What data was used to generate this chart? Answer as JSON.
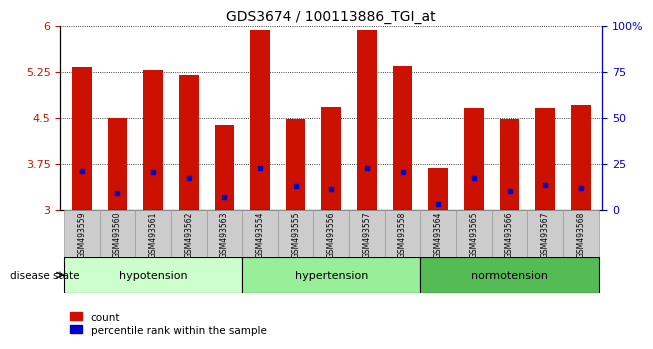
{
  "title": "GDS3674 / 100113886_TGI_at",
  "samples": [
    "GSM493559",
    "GSM493560",
    "GSM493561",
    "GSM493562",
    "GSM493563",
    "GSM493554",
    "GSM493555",
    "GSM493556",
    "GSM493557",
    "GSM493558",
    "GSM493564",
    "GSM493565",
    "GSM493566",
    "GSM493567",
    "GSM493568"
  ],
  "counts": [
    5.32,
    4.5,
    5.28,
    5.19,
    4.38,
    5.93,
    4.47,
    4.67,
    5.93,
    5.34,
    3.68,
    4.65,
    4.47,
    4.65,
    4.7
  ],
  "percentile_values": [
    3.63,
    3.27,
    3.62,
    3.51,
    3.2,
    3.68,
    3.38,
    3.33,
    3.68,
    3.62,
    3.1,
    3.52,
    3.3,
    3.4,
    3.35
  ],
  "ymin": 3.0,
  "ymax": 6.0,
  "yticks_left": [
    3.0,
    3.75,
    4.5,
    5.25,
    6.0
  ],
  "ytick_labels_left": [
    "3",
    "3.75",
    "4.5",
    "5.25",
    "6"
  ],
  "ytick_labels_right": [
    "0",
    "25",
    "50",
    "75",
    "100%"
  ],
  "bar_color": "#cc1100",
  "dot_color": "#0000cc",
  "groups": [
    {
      "label": "hypotension",
      "start": 0,
      "end": 5,
      "color": "#ccffcc"
    },
    {
      "label": "hypertension",
      "start": 5,
      "end": 10,
      "color": "#99ee99"
    },
    {
      "label": "normotension",
      "start": 10,
      "end": 15,
      "color": "#55bb55"
    }
  ],
  "disease_state_label": "disease state",
  "legend_count_label": "count",
  "legend_percentile_label": "percentile rank within the sample",
  "bar_width": 0.55,
  "background_color": "#ffffff",
  "tick_label_color_left": "#cc1100",
  "tick_label_color_right": "#0000cc",
  "xlabel_bg_color": "#cccccc",
  "xlabel_edge_color": "#999999"
}
